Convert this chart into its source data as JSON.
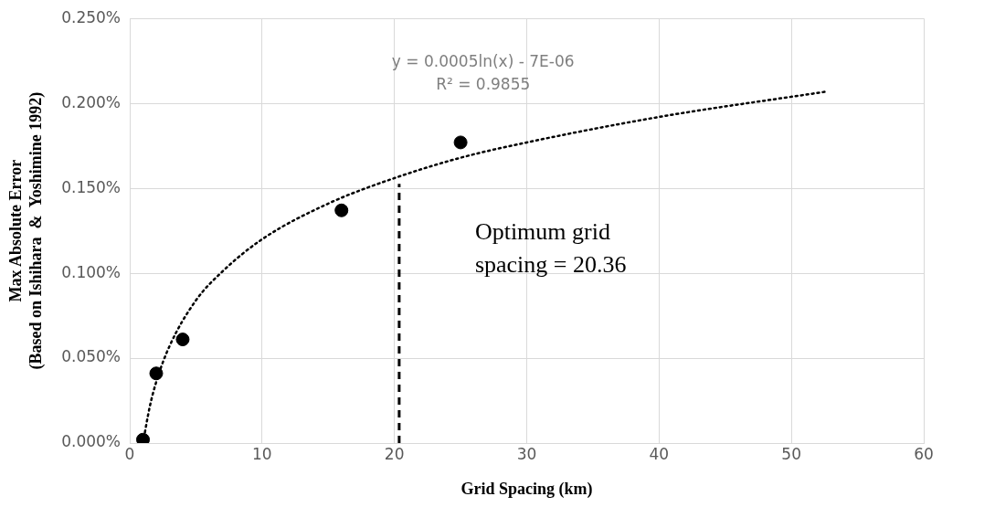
{
  "chart_data": {
    "type": "scatter",
    "xlabel": "Grid Spacing (km)",
    "ylabel": "Max Absolute Error\n(Based on Ishihara  &  Yoshimine 1992)",
    "xlim": [
      0,
      60
    ],
    "xticks": [
      0,
      10,
      20,
      30,
      40,
      50,
      60
    ],
    "ylim": [
      0,
      0.25
    ],
    "yticks": [
      {
        "value": 0,
        "label": "0.000%"
      },
      {
        "value": 0.05,
        "label": "0.050%"
      },
      {
        "value": 0.1,
        "label": "0.100%"
      },
      {
        "value": 0.15,
        "label": "0.150%"
      },
      {
        "value": 0.2,
        "label": "0.200%"
      },
      {
        "value": 0.25,
        "label": "0.250%"
      }
    ],
    "grid": true,
    "legend": false,
    "series": [
      {
        "color": "#000000",
        "marker": "circle",
        "x": [
          1,
          2,
          4,
          16,
          25
        ],
        "values": [
          0.002,
          0.041,
          0.061,
          0.137,
          0.177
        ]
      },
      {
        "type": "line",
        "color": "#000000",
        "line_style": "dotted",
        "marker": "none",
        "x": [
          1,
          1.5,
          2,
          3,
          5,
          7,
          10,
          15,
          20,
          25,
          30,
          40,
          52.7
        ],
        "values": [
          0.0,
          0.021,
          0.036,
          0.057,
          0.084,
          0.101,
          0.12,
          0.141,
          0.156,
          0.168,
          0.177,
          0.192,
          0.207
        ]
      }
    ],
    "ref_lines": [
      {
        "axis": "x",
        "value": 20.36,
        "label": "Optimum grid\nspacing = 20.36",
        "color": "#000000",
        "line_style": "dashed"
      }
    ],
    "annotations": [
      "y = 0.0005ln(x) - 7E-06",
      "R² = 0.9855"
    ]
  }
}
